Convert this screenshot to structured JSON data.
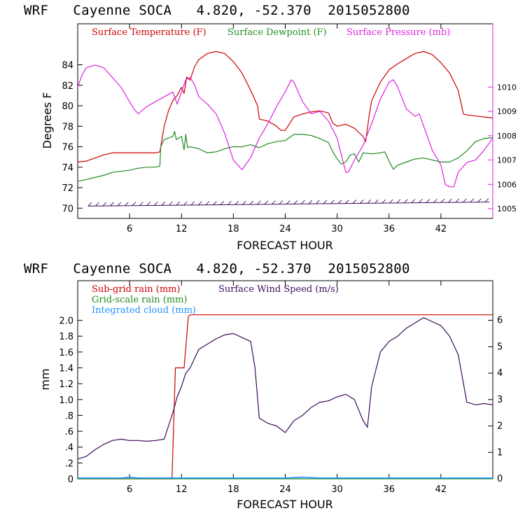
{
  "chart_data": [
    {
      "type": "line",
      "title": "WRF   Cayenne SOCA   4.820, -52.370  2015052800",
      "xlabel": "FORECAST HOUR",
      "ylabel": "Degrees F",
      "xlim": [
        0,
        48
      ],
      "x_ticks": [
        "6",
        "12",
        "18",
        "24",
        "30",
        "36",
        "42"
      ],
      "ylim_left": [
        69,
        88
      ],
      "y_ticks_left": [
        "70",
        "72",
        "74",
        "76",
        "78",
        "80",
        "82",
        "84"
      ],
      "ylim_right": [
        1004.6,
        1012.6
      ],
      "y_ticks_right": [
        "1005",
        "1006",
        "1007",
        "1008",
        "1009",
        "1010"
      ],
      "series": [
        {
          "name": "Surface Temperature (F)",
          "color": "#cc0000",
          "axis": "left",
          "points": [
            [
              0,
              74.5
            ],
            [
              1,
              74.6
            ],
            [
              2,
              74.9
            ],
            [
              3,
              75.2
            ],
            [
              4,
              75.4
            ],
            [
              6,
              75.4
            ],
            [
              8,
              75.4
            ],
            [
              9,
              75.4
            ],
            [
              9.5,
              75.5
            ],
            [
              10,
              78
            ],
            [
              10.5,
              79.5
            ],
            [
              11,
              80.5
            ],
            [
              11.5,
              81
            ],
            [
              12,
              81.8
            ],
            [
              12.3,
              81.2
            ],
            [
              12.6,
              82.8
            ],
            [
              13,
              82.5
            ],
            [
              13.5,
              83.8
            ],
            [
              14,
              84.5
            ],
            [
              15,
              85.1
            ],
            [
              16,
              85.3
            ],
            [
              17,
              85.1
            ],
            [
              18,
              84.3
            ],
            [
              19,
              83.2
            ],
            [
              20,
              81.5
            ],
            [
              20.8,
              80
            ],
            [
              21,
              78.7
            ],
            [
              22,
              78.5
            ],
            [
              23,
              78
            ],
            [
              23.5,
              77.6
            ],
            [
              24,
              77.6
            ],
            [
              25,
              78.9
            ],
            [
              26,
              79.2
            ],
            [
              27,
              79.4
            ],
            [
              28,
              79.5
            ],
            [
              29,
              79.3
            ],
            [
              29.5,
              78.3
            ],
            [
              30,
              78
            ],
            [
              31,
              78.2
            ],
            [
              32,
              77.8
            ],
            [
              33,
              77
            ],
            [
              33.3,
              76.5
            ],
            [
              33.7,
              79
            ],
            [
              34,
              80.5
            ],
            [
              35,
              82.3
            ],
            [
              36,
              83.5
            ],
            [
              37,
              84.1
            ],
            [
              38,
              84.6
            ],
            [
              39,
              85.1
            ],
            [
              40,
              85.3
            ],
            [
              41,
              85
            ],
            [
              42,
              84.2
            ],
            [
              43,
              83.2
            ],
            [
              44,
              81.5
            ],
            [
              44.6,
              79.2
            ],
            [
              45,
              79.1
            ],
            [
              46,
              79
            ],
            [
              47,
              78.9
            ],
            [
              48,
              78.8
            ]
          ]
        },
        {
          "name": "Surface Dewpoint (F)",
          "color": "#228b22",
          "axis": "left",
          "points": [
            [
              0,
              72.6
            ],
            [
              1,
              72.8
            ],
            [
              2,
              73.0
            ],
            [
              3,
              73.2
            ],
            [
              4,
              73.5
            ],
            [
              5,
              73.6
            ],
            [
              6,
              73.7
            ],
            [
              7,
              73.9
            ],
            [
              8,
              74
            ],
            [
              9,
              74
            ],
            [
              9.5,
              74.1
            ],
            [
              9.6,
              76
            ],
            [
              10,
              76.7
            ],
            [
              11,
              77
            ],
            [
              11.2,
              77.5
            ],
            [
              11.4,
              76.7
            ],
            [
              12,
              77
            ],
            [
              12.3,
              75.7
            ],
            [
              12.5,
              77.2
            ],
            [
              12.7,
              75.9
            ],
            [
              13,
              76
            ],
            [
              14,
              75.8
            ],
            [
              15,
              75.4
            ],
            [
              16,
              75.5
            ],
            [
              17,
              75.8
            ],
            [
              18,
              76
            ],
            [
              19,
              76
            ],
            [
              20,
              76.2
            ],
            [
              21,
              75.9
            ],
            [
              22,
              76.3
            ],
            [
              23,
              76.5
            ],
            [
              24,
              76.6
            ],
            [
              25,
              77.2
            ],
            [
              26,
              77.2
            ],
            [
              27,
              77.1
            ],
            [
              28,
              76.8
            ],
            [
              29,
              76.4
            ],
            [
              29.5,
              75.5
            ],
            [
              30,
              74.8
            ],
            [
              30.5,
              74.3
            ],
            [
              31,
              74.5
            ],
            [
              31.5,
              75.2
            ],
            [
              32,
              75.3
            ],
            [
              32.5,
              74.5
            ],
            [
              33,
              75.4
            ],
            [
              34,
              75.3
            ],
            [
              35,
              75.4
            ],
            [
              35.5,
              75.5
            ],
            [
              36,
              74.6
            ],
            [
              36.5,
              73.8
            ],
            [
              37,
              74.2
            ],
            [
              38,
              74.5
            ],
            [
              39,
              74.8
            ],
            [
              40,
              74.9
            ],
            [
              41,
              74.7
            ],
            [
              42,
              74.5
            ],
            [
              43,
              74.5
            ],
            [
              44,
              74.9
            ],
            [
              45,
              75.6
            ],
            [
              46,
              76.5
            ],
            [
              47,
              76.8
            ],
            [
              48,
              76.9
            ]
          ]
        },
        {
          "name": "Surface Pressure (mb)",
          "color": "#dd22dd",
          "axis": "right",
          "points": [
            [
              0,
              1010.0
            ],
            [
              0.5,
              1010.5
            ],
            [
              1,
              1010.8
            ],
            [
              2,
              1010.9
            ],
            [
              3,
              1010.8
            ],
            [
              4,
              1010.4
            ],
            [
              5,
              1010.0
            ],
            [
              6,
              1009.4
            ],
            [
              6.5,
              1009.1
            ],
            [
              7,
              1008.9
            ],
            [
              8,
              1009.2
            ],
            [
              9,
              1009.4
            ],
            [
              10,
              1009.6
            ],
            [
              11,
              1009.8
            ],
            [
              11.5,
              1009.3
            ],
            [
              12,
              1009.8
            ],
            [
              12.5,
              1010.3
            ],
            [
              13,
              1010.4
            ],
            [
              13.5,
              1010.1
            ],
            [
              14,
              1009.6
            ],
            [
              15,
              1009.3
            ],
            [
              16,
              1008.9
            ],
            [
              17,
              1008.1
            ],
            [
              18,
              1007.0
            ],
            [
              19,
              1006.6
            ],
            [
              20,
              1007.1
            ],
            [
              21,
              1007.9
            ],
            [
              22,
              1008.5
            ],
            [
              23,
              1009.2
            ],
            [
              24,
              1009.8
            ],
            [
              24.7,
              1010.3
            ],
            [
              25,
              1010.2
            ],
            [
              26,
              1009.4
            ],
            [
              27,
              1008.9
            ],
            [
              28,
              1009.0
            ],
            [
              29,
              1008.6
            ],
            [
              30,
              1007.9
            ],
            [
              31,
              1006.5
            ],
            [
              31.3,
              1006.5
            ],
            [
              32,
              1007.0
            ],
            [
              33,
              1007.6
            ],
            [
              34,
              1008.5
            ],
            [
              35,
              1009.5
            ],
            [
              36,
              1010.2
            ],
            [
              36.5,
              1010.3
            ],
            [
              37,
              1010.0
            ],
            [
              38,
              1009.1
            ],
            [
              39,
              1008.8
            ],
            [
              39.5,
              1008.9
            ],
            [
              40,
              1008.4
            ],
            [
              41,
              1007.4
            ],
            [
              42,
              1006.8
            ],
            [
              42.5,
              1006.0
            ],
            [
              43,
              1005.9
            ],
            [
              43.5,
              1005.9
            ],
            [
              44,
              1006.5
            ],
            [
              45,
              1006.9
            ],
            [
              46,
              1007.0
            ],
            [
              47,
              1007.4
            ],
            [
              48,
              1007.9
            ]
          ]
        }
      ],
      "wind_barbs": {
        "label": "",
        "y_level": 70.35,
        "slope_left_to_right": [
          70.2,
          70.6
        ]
      }
    },
    {
      "type": "line",
      "title": "WRF   Cayenne SOCA   4.820, -52.370  2015052800",
      "xlabel": "FORECAST HOUR",
      "ylabel": "mm",
      "xlim": [
        0,
        48
      ],
      "x_ticks": [
        "6",
        "12",
        "18",
        "24",
        "30",
        "36",
        "42"
      ],
      "ylim_left": [
        0,
        2.5
      ],
      "y_ticks_left": [
        "0",
        ".2",
        ".4",
        ".6",
        ".8",
        "1.0",
        "1.2",
        "1.4",
        "1.6",
        "1.8",
        "2.0"
      ],
      "ylim_right": [
        0,
        7.5
      ],
      "y_ticks_right": [
        "0",
        "1",
        "2",
        "3",
        "4",
        "5",
        "6"
      ],
      "series": [
        {
          "name": "Sub-grid rain (mm)",
          "color": "#cc0000",
          "axis": "left",
          "points": [
            [
              0,
              0
            ],
            [
              10.9,
              0
            ],
            [
              11.3,
              1.4
            ],
            [
              12.3,
              1.4
            ],
            [
              12.8,
              2.05
            ],
            [
              13,
              2.07
            ],
            [
              48,
              2.07
            ]
          ]
        },
        {
          "name": "Grid-scale rain (mm)",
          "color": "#228b22",
          "axis": "left",
          "points": [
            [
              0,
              0
            ],
            [
              48,
              0
            ]
          ]
        },
        {
          "name": "Integrated cloud (mm)",
          "color": "#1e90ff",
          "axis": "left",
          "points": [
            [
              0,
              0.01
            ],
            [
              5,
              0.01
            ],
            [
              6,
              0.02
            ],
            [
              7,
              0.01
            ],
            [
              18,
              0.01
            ],
            [
              24,
              0.01
            ],
            [
              26,
              0.02
            ],
            [
              28,
              0.01
            ],
            [
              48,
              0.01
            ]
          ]
        },
        {
          "name": "Surface Wind Speed (m/s)",
          "color": "#3b0a5a",
          "axis": "right",
          "points": [
            [
              0,
              0.75
            ],
            [
              1,
              0.85
            ],
            [
              2,
              1.1
            ],
            [
              3,
              1.3
            ],
            [
              4,
              1.45
            ],
            [
              5,
              1.5
            ],
            [
              6,
              1.45
            ],
            [
              7,
              1.45
            ],
            [
              8,
              1.42
            ],
            [
              9,
              1.45
            ],
            [
              10,
              1.5
            ],
            [
              10.5,
              2.0
            ],
            [
              11,
              2.5
            ],
            [
              11.5,
              3.1
            ],
            [
              12,
              3.5
            ],
            [
              12.5,
              4.0
            ],
            [
              13,
              4.2
            ],
            [
              14,
              4.9
            ],
            [
              15,
              5.1
            ],
            [
              16,
              5.3
            ],
            [
              17,
              5.45
            ],
            [
              18,
              5.5
            ],
            [
              19,
              5.35
            ],
            [
              20,
              5.2
            ],
            [
              20.5,
              4.2
            ],
            [
              21,
              2.3
            ],
            [
              22,
              2.1
            ],
            [
              23,
              2.0
            ],
            [
              24,
              1.75
            ],
            [
              25,
              2.2
            ],
            [
              26,
              2.4
            ],
            [
              27,
              2.7
            ],
            [
              28,
              2.9
            ],
            [
              29,
              2.95
            ],
            [
              30,
              3.1
            ],
            [
              31,
              3.2
            ],
            [
              32,
              3.0
            ],
            [
              33,
              2.2
            ],
            [
              33.5,
              1.95
            ],
            [
              34,
              3.5
            ],
            [
              35,
              4.8
            ],
            [
              36,
              5.2
            ],
            [
              37,
              5.4
            ],
            [
              38,
              5.7
            ],
            [
              39,
              5.9
            ],
            [
              40,
              6.1
            ],
            [
              41,
              5.95
            ],
            [
              42,
              5.8
            ],
            [
              43,
              5.4
            ],
            [
              44,
              4.7
            ],
            [
              45,
              2.9
            ],
            [
              46,
              2.8
            ],
            [
              47,
              2.85
            ],
            [
              48,
              2.8
            ]
          ]
        }
      ]
    }
  ]
}
